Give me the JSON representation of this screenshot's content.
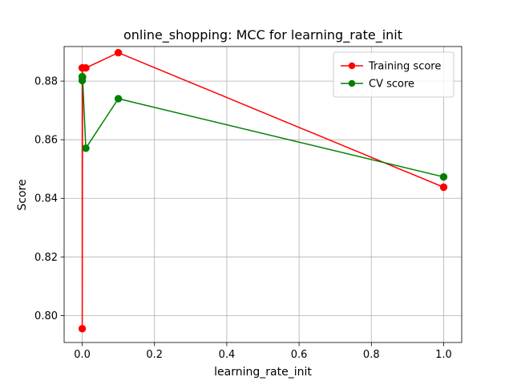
{
  "chart_data": {
    "type": "line",
    "title": "online_shopping: MCC for learning_rate_init",
    "xlabel": "learning_rate_init",
    "ylabel": "Score",
    "xlim": [
      -0.05,
      1.05
    ],
    "ylim": [
      0.7908,
      0.8918
    ],
    "xticks": [
      0.0,
      0.2,
      0.4,
      0.6,
      0.8,
      1.0
    ],
    "xtick_labels": [
      "0.0",
      "0.2",
      "0.4",
      "0.6",
      "0.8",
      "1.0"
    ],
    "yticks": [
      0.8,
      0.82,
      0.84,
      0.86,
      0.88
    ],
    "ytick_labels": [
      "0.80",
      "0.82",
      "0.84",
      "0.86",
      "0.88"
    ],
    "grid": true,
    "legend_position": "top-right",
    "series": [
      {
        "name": "Training score",
        "color": "#ff0000",
        "x": [
          1e-05,
          0.0001,
          0.001,
          0.01,
          0.1,
          1.0
        ],
        "y": [
          0.8845,
          0.7955,
          0.8845,
          0.8845,
          0.8897,
          0.8438
        ]
      },
      {
        "name": "CV score",
        "color": "#008000",
        "x": [
          1e-05,
          0.0001,
          0.001,
          0.01,
          0.1,
          1.0
        ],
        "y": [
          0.8815,
          0.8802,
          0.8813,
          0.8571,
          0.874,
          0.8473
        ]
      }
    ]
  }
}
